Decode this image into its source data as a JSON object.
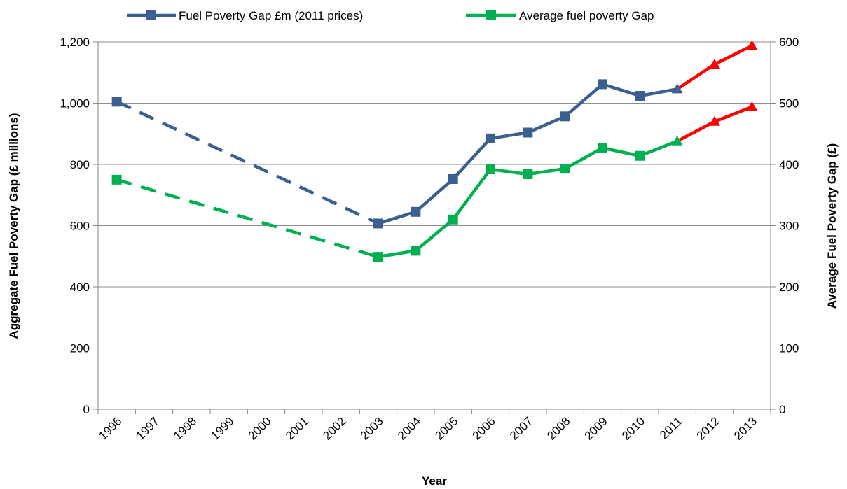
{
  "chart_data": {
    "type": "line",
    "title": "",
    "xlabel": "Year",
    "ylabel_left": "Aggregate Fuel Poverty Gap (£ millions)",
    "ylabel_right": "Average Fuel Poverty Gap (£)",
    "x": [
      "1996",
      "1997",
      "1998",
      "1999",
      "2000",
      "2001",
      "2002",
      "2003",
      "2004",
      "2005",
      "2006",
      "2007",
      "2008",
      "2009",
      "2010",
      "2011",
      "2012",
      "2013"
    ],
    "ylim_left": [
      0,
      1200
    ],
    "yticks_left": [
      "0",
      "200",
      "400",
      "600",
      "800",
      "1,000",
      "1,200"
    ],
    "ylim_right": [
      0,
      600
    ],
    "yticks_right": [
      "0",
      "100",
      "200",
      "300",
      "400",
      "500",
      "600"
    ],
    "grid": true,
    "legend_position": "top",
    "series": [
      {
        "name": "Fuel Poverty Gap £m (2011 prices)",
        "axis": "left",
        "color": "#3b5f8f",
        "marker": "square",
        "points": [
          {
            "x": "1996",
            "y": 1005
          },
          {
            "x": "2003",
            "y": 607
          },
          {
            "x": "2004",
            "y": 645
          },
          {
            "x": "2005",
            "y": 752
          },
          {
            "x": "2006",
            "y": 885
          },
          {
            "x": "2007",
            "y": 904
          },
          {
            "x": "2008",
            "y": 957
          },
          {
            "x": "2009",
            "y": 1062
          },
          {
            "x": "2010",
            "y": 1024
          },
          {
            "x": "2011",
            "y": 1046
          },
          {
            "x": "2012",
            "y": 1127
          },
          {
            "x": "2013",
            "y": 1188
          }
        ]
      },
      {
        "name": "Average fuel poverty Gap",
        "axis": "right",
        "color": "#00b050",
        "marker": "square",
        "points": [
          {
            "x": "1996",
            "y": 375
          },
          {
            "x": "2003",
            "y": 249
          },
          {
            "x": "2004",
            "y": 259
          },
          {
            "x": "2005",
            "y": 310
          },
          {
            "x": "2006",
            "y": 392
          },
          {
            "x": "2007",
            "y": 384
          },
          {
            "x": "2008",
            "y": 393
          },
          {
            "x": "2009",
            "y": 427
          },
          {
            "x": "2010",
            "y": 414
          },
          {
            "x": "2011",
            "y": 438
          },
          {
            "x": "2012",
            "y": 470
          },
          {
            "x": "2013",
            "y": 494
          }
        ]
      }
    ],
    "segment_styles": {
      "interpolated": {
        "from": "1996",
        "to": "2003",
        "dash": "dashed"
      },
      "projected": {
        "from": "2011",
        "to": "2013",
        "color": "#ff0000",
        "marker": "triangle"
      }
    }
  }
}
